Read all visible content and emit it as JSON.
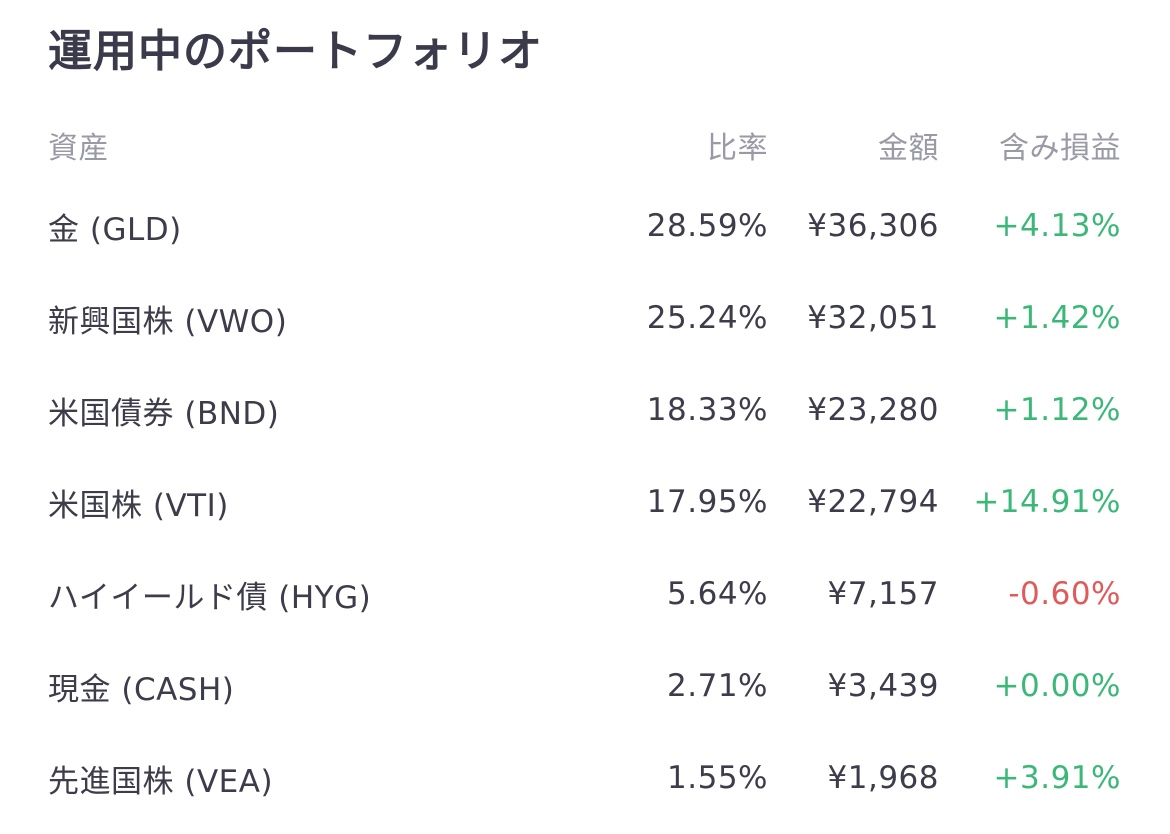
{
  "title": "運用中のポートフォリオ",
  "colors": {
    "positive": "#3bb878",
    "negative": "#e05a5a",
    "header_text": "#9a9aa6",
    "body_text": "#3c3c4a"
  },
  "columns": {
    "asset": "資産",
    "ratio": "比率",
    "amount": "金額",
    "profit_loss": "含み損益"
  },
  "rows": [
    {
      "asset": "金 (GLD)",
      "ratio": "28.59%",
      "amount": "¥36,306",
      "profit_loss": "+4.13%",
      "status": "positive"
    },
    {
      "asset": "新興国株 (VWO)",
      "ratio": "25.24%",
      "amount": "¥32,051",
      "profit_loss": "+1.42%",
      "status": "positive"
    },
    {
      "asset": "米国債券 (BND)",
      "ratio": "18.33%",
      "amount": "¥23,280",
      "profit_loss": "+1.12%",
      "status": "positive"
    },
    {
      "asset": "米国株 (VTI)",
      "ratio": "17.95%",
      "amount": "¥22,794",
      "profit_loss": "+14.91%",
      "status": "positive"
    },
    {
      "asset": "ハイイールド債 (HYG)",
      "ratio": "5.64%",
      "amount": "¥7,157",
      "profit_loss": "-0.60%",
      "status": "negative"
    },
    {
      "asset": "現金 (CASH)",
      "ratio": "2.71%",
      "amount": "¥3,439",
      "profit_loss": "+0.00%",
      "status": "positive"
    },
    {
      "asset": "先進国株 (VEA)",
      "ratio": "1.55%",
      "amount": "¥1,968",
      "profit_loss": "+3.91%",
      "status": "positive"
    }
  ]
}
